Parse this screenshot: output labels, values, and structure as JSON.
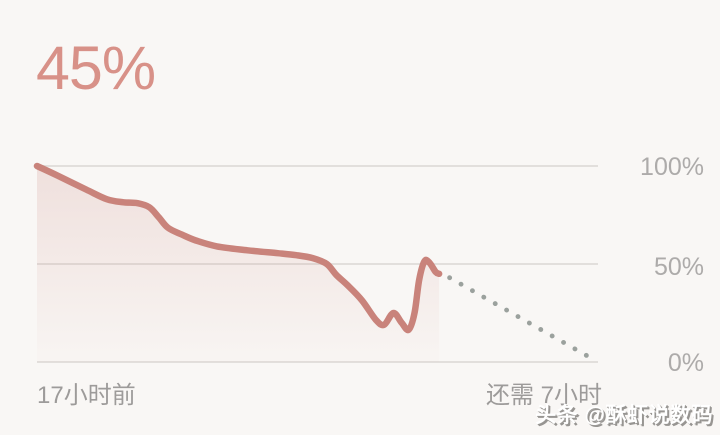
{
  "battery": {
    "level_label": "45%"
  },
  "chart_data": {
    "type": "area",
    "x_unit": "hours relative to now (negative = past)",
    "xlim": [
      -17.2,
      6.8
    ],
    "ylim": [
      0,
      100
    ],
    "grid": true,
    "legend": "none",
    "yticks": [
      {
        "value": 100,
        "label": "100%"
      },
      {
        "value": 50,
        "label": "50%"
      },
      {
        "value": 0,
        "label": "0%"
      }
    ],
    "x_axis_labels": {
      "left": "17小时前",
      "right": "还需 7小时"
    },
    "series": [
      {
        "name": "battery-history",
        "style": "solid-area",
        "color": "#c9837b",
        "fill_top_color": "rgba(201,131,123,0.20)",
        "fill_bottom_color": "rgba(201,131,123,0.02)",
        "points": [
          [
            -17.2,
            100
          ],
          [
            -16.3,
            95
          ],
          [
            -15.1,
            88
          ],
          [
            -14.2,
            83
          ],
          [
            -13.5,
            81.5
          ],
          [
            -12.9,
            81
          ],
          [
            -12.4,
            79
          ],
          [
            -12.0,
            74
          ],
          [
            -11.6,
            68.5
          ],
          [
            -11.0,
            65
          ],
          [
            -10.4,
            62
          ],
          [
            -9.5,
            59
          ],
          [
            -8.2,
            57
          ],
          [
            -6.9,
            55.5
          ],
          [
            -6.1,
            54.5
          ],
          [
            -5.4,
            53
          ],
          [
            -4.8,
            50
          ],
          [
            -4.4,
            44.5
          ],
          [
            -3.9,
            39
          ],
          [
            -3.3,
            31.5
          ],
          [
            -2.7,
            21.5
          ],
          [
            -2.35,
            19
          ],
          [
            -1.95,
            25
          ],
          [
            -1.6,
            20
          ],
          [
            -1.3,
            16.5
          ],
          [
            -1.05,
            25
          ],
          [
            -0.85,
            42
          ],
          [
            -0.62,
            51.5
          ],
          [
            -0.4,
            50.5
          ],
          [
            -0.15,
            46
          ],
          [
            0,
            45
          ]
        ]
      },
      {
        "name": "battery-projection",
        "style": "dotted",
        "color": "#9ba19d",
        "points": [
          [
            0.45,
            43
          ],
          [
            6.65,
            1
          ]
        ]
      }
    ]
  },
  "colors": {
    "background": "#f9f7f5",
    "accent_level_text": "#d89188",
    "history_line": "#c9837b",
    "projection_dots": "#9ba19d",
    "gridline": "#e2dfdc",
    "axis_text": "#adabaa"
  },
  "watermark": {
    "text": "头条 @酥虾说数码"
  }
}
